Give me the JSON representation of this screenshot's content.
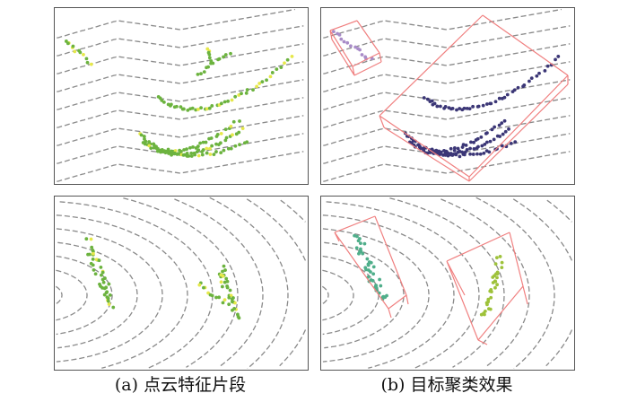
{
  "figure": {
    "captions": [
      "(a) 点云特征片段",
      "(b) 目标聚类效果"
    ],
    "colors": {
      "ground_points": "#8a8a8a",
      "feature_points": "#6cb33f",
      "feature_highlight": "#e6e84a",
      "bounding_box": "#f08080",
      "cluster_vehicle": "#3b3676",
      "cluster_small": "#a98cc8",
      "cluster_ped_1": "#4fae8a",
      "cluster_ped_2": "#9ec23a"
    }
  }
}
